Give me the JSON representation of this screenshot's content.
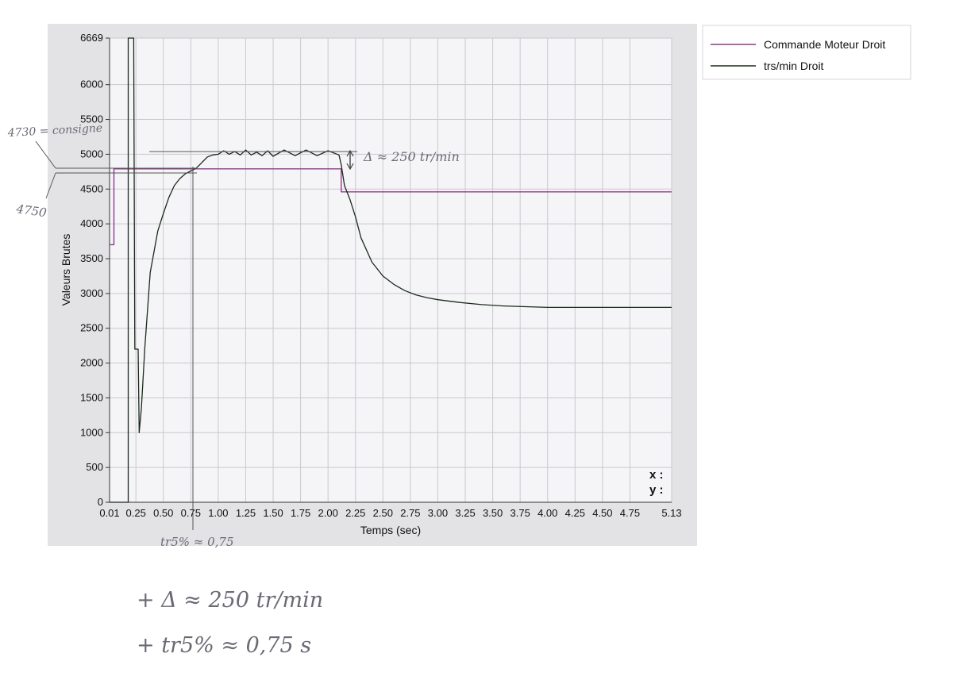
{
  "chart_data": {
    "type": "line",
    "title": "",
    "xlabel": "Temps (sec)",
    "ylabel": "Valeurs Brutes",
    "xlim": [
      0.01,
      5.13
    ],
    "ylim": [
      0,
      6669
    ],
    "x_ticks": [
      0.01,
      0.25,
      0.5,
      0.75,
      1.0,
      1.25,
      1.5,
      1.75,
      2.0,
      2.25,
      2.5,
      2.75,
      3.0,
      3.25,
      3.5,
      3.75,
      4.0,
      4.25,
      4.5,
      4.75,
      5.13
    ],
    "x_tick_labels": [
      "0.01",
      "0.25",
      "0.50",
      "0.75",
      "1.00",
      "1.25",
      "1.50",
      "1.75",
      "2.00",
      "2.25",
      "2.50",
      "2.75",
      "3.00",
      "3.25",
      "3.50",
      "3.75",
      "4.00",
      "4.25",
      "4.50",
      "4.75",
      "5.13"
    ],
    "y_ticks": [
      0,
      500,
      1000,
      1500,
      2000,
      2500,
      3000,
      3500,
      4000,
      4500,
      5000,
      5500,
      6000,
      6669
    ],
    "y_tick_labels": [
      "0",
      "500",
      "1000",
      "1500",
      "2000",
      "2500",
      "3000",
      "3500",
      "4000",
      "4500",
      "5000",
      "5500",
      "6000",
      "6669"
    ],
    "grid": true,
    "legend_position": "right",
    "series": [
      {
        "name": "Commande Moteur Droit",
        "color": "#8b3a8b",
        "x": [
          0.01,
          0.05,
          0.05,
          2.12,
          2.12,
          5.13
        ],
        "y": [
          3700,
          3700,
          4790,
          4790,
          4460,
          4460
        ]
      },
      {
        "name": "trs/min Droit",
        "color": "#1c2a1c",
        "x": [
          0.01,
          0.18,
          0.18,
          0.23,
          0.24,
          0.27,
          0.28,
          0.3,
          0.33,
          0.38,
          0.45,
          0.5,
          0.55,
          0.6,
          0.65,
          0.7,
          0.75,
          0.8,
          0.85,
          0.9,
          0.95,
          1.0,
          1.05,
          1.1,
          1.15,
          1.2,
          1.25,
          1.3,
          1.35,
          1.4,
          1.45,
          1.5,
          1.6,
          1.7,
          1.8,
          1.9,
          2.0,
          2.1,
          2.12,
          2.15,
          2.2,
          2.25,
          2.3,
          2.4,
          2.5,
          2.6,
          2.7,
          2.8,
          2.9,
          3.0,
          3.2,
          3.4,
          3.6,
          3.8,
          4.0,
          4.2,
          4.4,
          4.6,
          4.8,
          5.0,
          5.13
        ],
        "y": [
          0,
          0,
          6669,
          6669,
          2200,
          2200,
          1000,
          1350,
          2200,
          3300,
          3900,
          4150,
          4380,
          4550,
          4650,
          4720,
          4760,
          4800,
          4880,
          4960,
          4990,
          5000,
          5050,
          5000,
          5040,
          4990,
          5060,
          4990,
          5030,
          4980,
          5050,
          4970,
          5060,
          4980,
          5060,
          4980,
          5050,
          4990,
          4850,
          4550,
          4350,
          4100,
          3800,
          3450,
          3250,
          3130,
          3040,
          2980,
          2940,
          2910,
          2870,
          2840,
          2820,
          2810,
          2800,
          2800,
          2800,
          2800,
          2800,
          2800,
          2800
        ]
      }
    ]
  },
  "readout": {
    "x_label": "x :",
    "y_label": "y :"
  },
  "annotations": {
    "consigne": "4730 = consigne",
    "level_4750": "4750",
    "delta": "Δ ≈ 250 tr/min",
    "tr5": "tr5% ≈ 0,75",
    "note1": "+ Δ ≈ 250 tr/min",
    "note2": "+ tr5% ≈ 0,75 s"
  }
}
